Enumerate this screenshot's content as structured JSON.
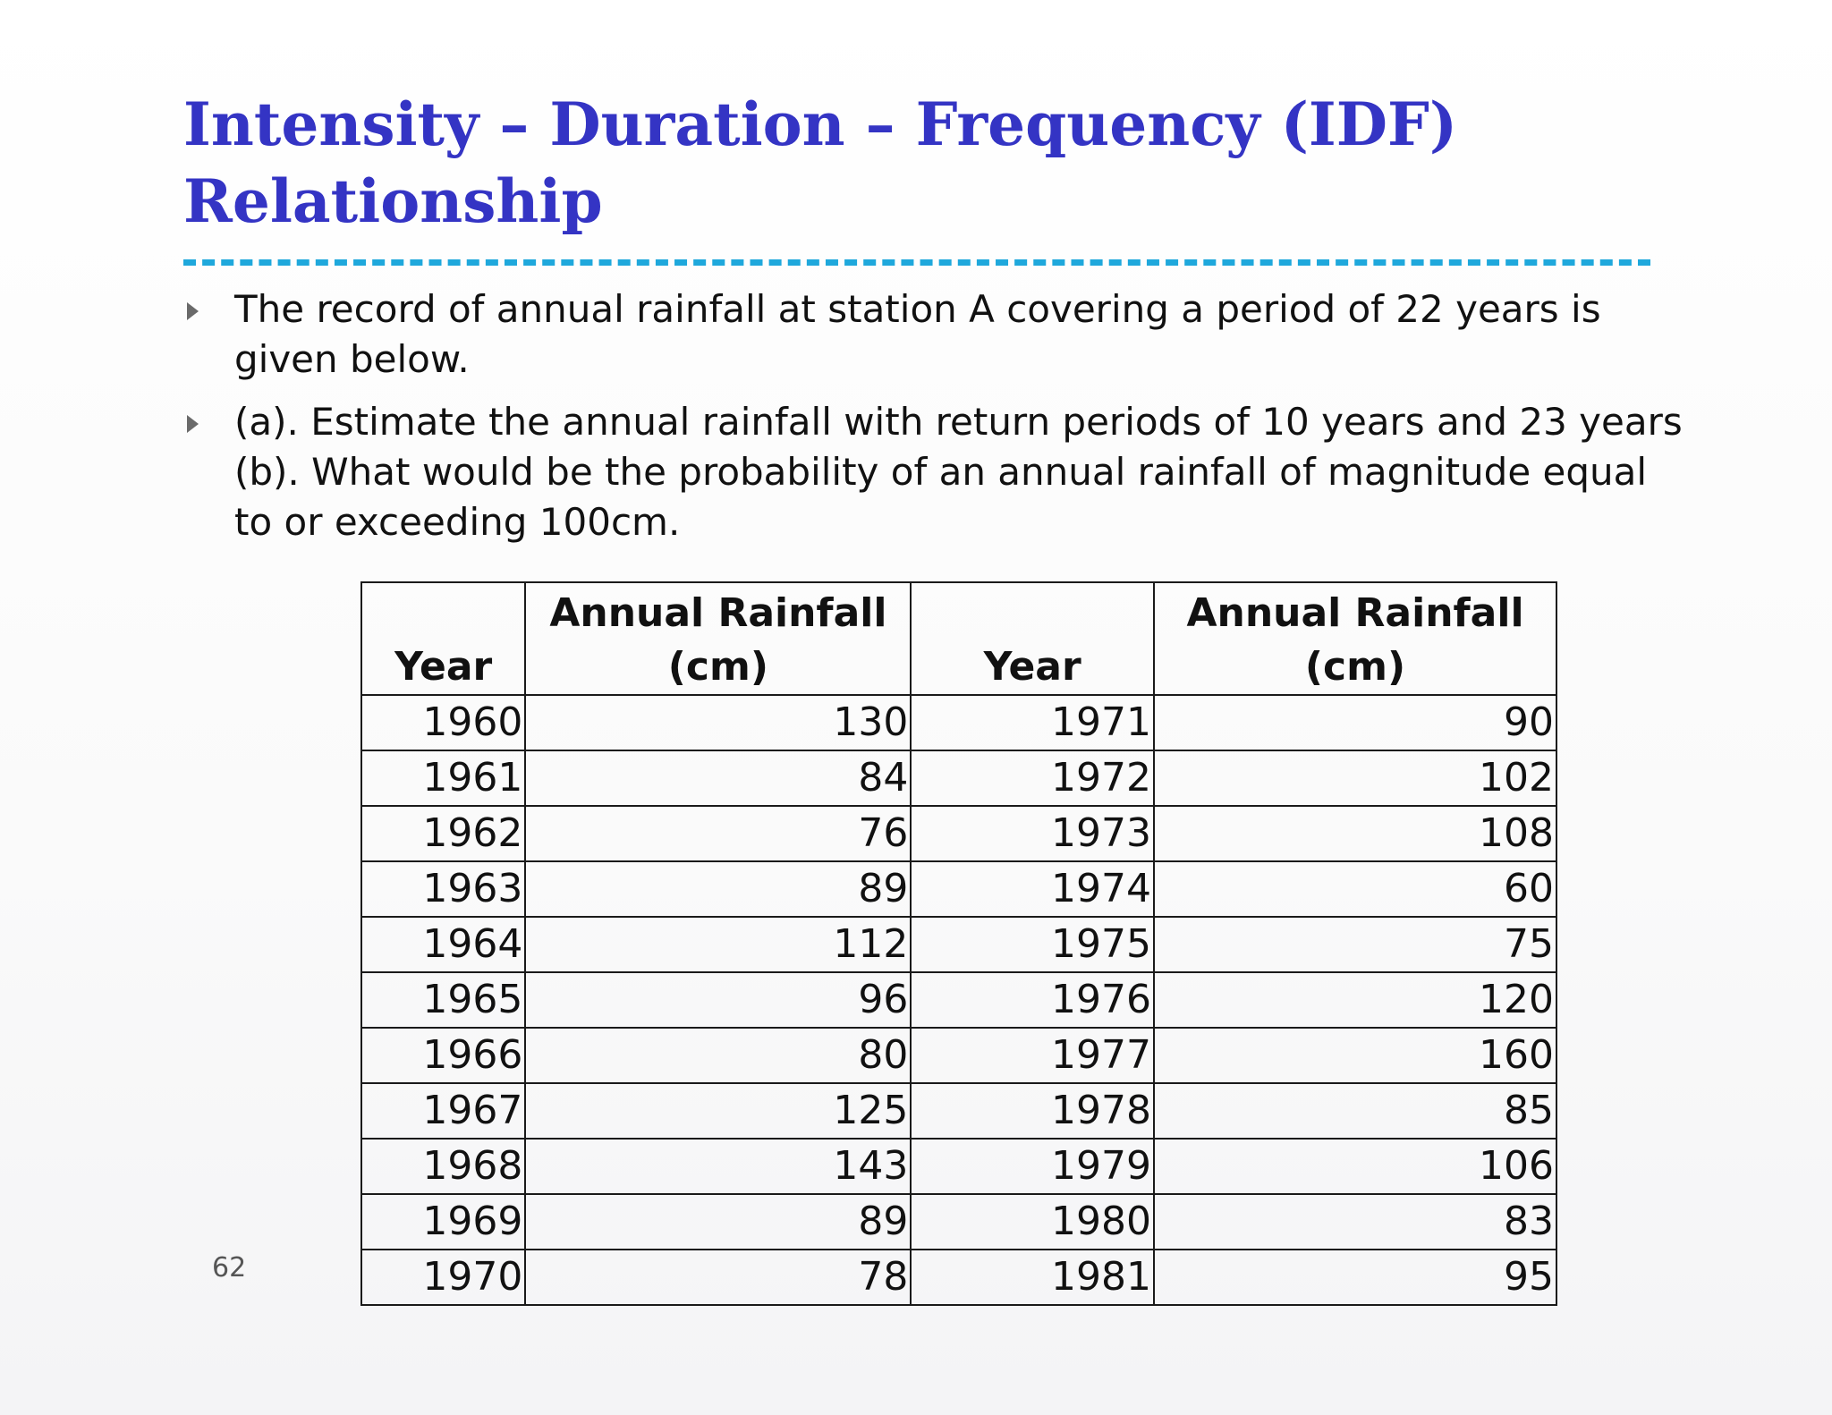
{
  "slide": {
    "title": "Intensity – Duration – Frequency (IDF) Relationship",
    "page_number": "62",
    "accent_colors": {
      "title": "#3434c4",
      "divider": "#1fa8dc",
      "bullet_marker": "#6a6a6a"
    },
    "bullet_icon": "triangle-right-icon"
  },
  "bullets": [
    {
      "lines": [
        "The record of annual rainfall at station A covering a period of 22 years is",
        "given below."
      ]
    },
    {
      "lines": [
        "(a). Estimate the annual rainfall with return periods of 10 years and 23 years",
        "(b). What would be the probability of an annual rainfall of magnitude equal",
        "to or exceeding 100cm."
      ]
    }
  ],
  "table": {
    "headers": [
      "Year",
      "Annual Rainfall (cm)",
      "Year",
      "Annual Rainfall (cm)"
    ],
    "rows": [
      [
        "1960",
        "130",
        "1971",
        "90"
      ],
      [
        "1961",
        "84",
        "1972",
        "102"
      ],
      [
        "1962",
        "76",
        "1973",
        "108"
      ],
      [
        "1963",
        "89",
        "1974",
        "60"
      ],
      [
        "1964",
        "112",
        "1975",
        "75"
      ],
      [
        "1965",
        "96",
        "1976",
        "120"
      ],
      [
        "1966",
        "80",
        "1977",
        "160"
      ],
      [
        "1967",
        "125",
        "1978",
        "85"
      ],
      [
        "1968",
        "143",
        "1979",
        "106"
      ],
      [
        "1969",
        "89",
        "1980",
        "83"
      ],
      [
        "1970",
        "78",
        "1981",
        "95"
      ]
    ]
  }
}
